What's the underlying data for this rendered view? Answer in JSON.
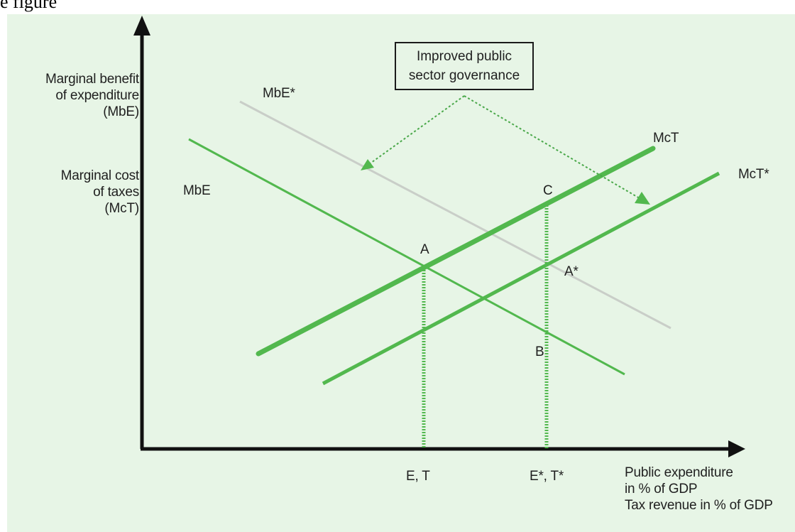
{
  "header_fragment": "e figure",
  "colors": {
    "background": "#e7f5e6",
    "curve_green": "#52b84e",
    "mbe_star_grey": "#c9cec8",
    "arrow_green": "#4aa84a"
  },
  "annotation_box": {
    "line1": "Improved public",
    "line2": "sector governance"
  },
  "y_axis_label": {
    "benefit_line1": "Marginal benefit",
    "benefit_line2": "of expenditure",
    "benefit_line3": "(MbE)",
    "cost_line1": "Marginal cost",
    "cost_line2": "of taxes",
    "cost_line3": "(McT)"
  },
  "x_axis_label": {
    "line1": "Public expenditure",
    "line2": "in % of GDP",
    "line3": "Tax revenue in % of GDP"
  },
  "curves": {
    "mbe": "MbE",
    "mbe_star": "MbE*",
    "mct": "McT",
    "mct_star": "McT*"
  },
  "points": {
    "a": "A",
    "a_star": "A*",
    "b": "B",
    "c": "C"
  },
  "x_ticks": {
    "et": "E, T",
    "et_star": "E*, T*"
  }
}
